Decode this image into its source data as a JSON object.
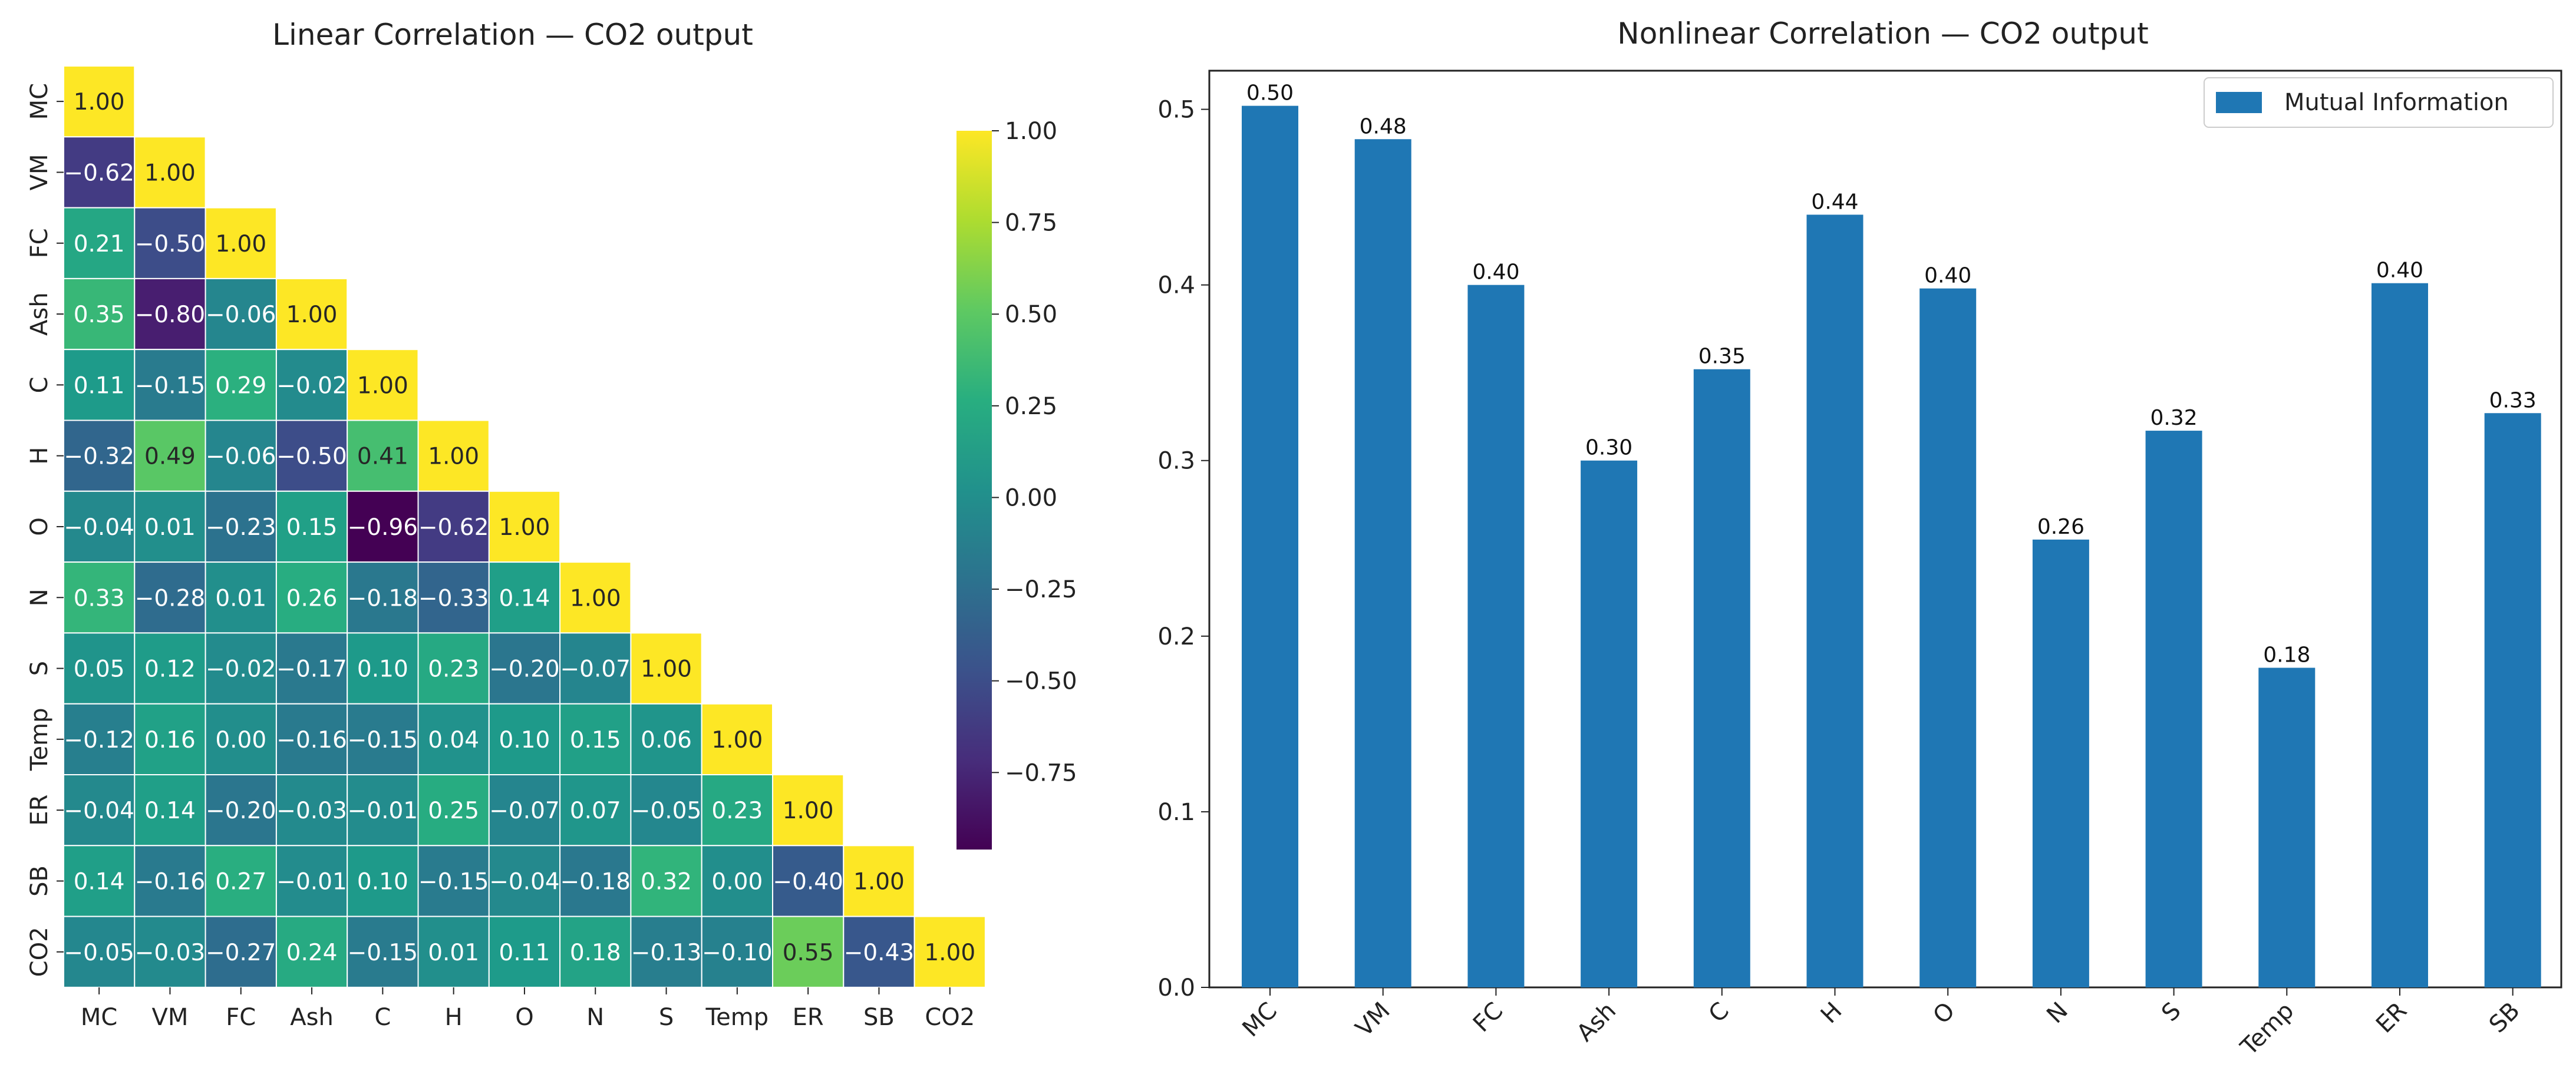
{
  "chart_data": [
    {
      "type": "heatmap",
      "title": "Linear Correlation — CO2 output",
      "labels": [
        "MC",
        "VM",
        "FC",
        "Ash",
        "C",
        "H",
        "O",
        "N",
        "S",
        "Temp",
        "ER",
        "SB",
        "CO2"
      ],
      "matrix": [
        [
          1.0
        ],
        [
          -0.62,
          1.0
        ],
        [
          0.21,
          -0.5,
          1.0
        ],
        [
          0.35,
          -0.8,
          -0.06,
          1.0
        ],
        [
          0.11,
          -0.15,
          0.29,
          -0.02,
          1.0
        ],
        [
          -0.32,
          0.49,
          -0.06,
          -0.5,
          0.41,
          1.0
        ],
        [
          -0.04,
          0.01,
          -0.23,
          0.15,
          -0.96,
          -0.62,
          1.0
        ],
        [
          0.33,
          -0.28,
          0.01,
          0.26,
          -0.18,
          -0.33,
          0.14,
          1.0
        ],
        [
          0.05,
          0.12,
          -0.02,
          -0.17,
          0.1,
          0.23,
          -0.2,
          -0.07,
          1.0
        ],
        [
          -0.12,
          0.16,
          0.0,
          -0.16,
          -0.15,
          0.04,
          0.1,
          0.15,
          0.06,
          1.0
        ],
        [
          -0.04,
          0.14,
          -0.2,
          -0.03,
          -0.01,
          0.25,
          -0.07,
          0.07,
          -0.05,
          0.23,
          1.0
        ],
        [
          0.14,
          -0.16,
          0.27,
          -0.01,
          0.1,
          -0.15,
          -0.04,
          -0.18,
          0.32,
          0.0,
          -0.4,
          1.0
        ],
        [
          -0.05,
          -0.03,
          -0.27,
          0.24,
          -0.15,
          0.01,
          0.11,
          0.18,
          -0.13,
          -0.1,
          0.55,
          -0.43,
          1.0
        ]
      ],
      "colormap": "viridis",
      "vmin": -0.96,
      "vmax": 1.0,
      "colorbar_ticks": [
        "1.00",
        "0.75",
        "0.50",
        "0.25",
        "0.00",
        "−0.25",
        "−0.50",
        "−0.75"
      ],
      "colorbar_tick_values": [
        1.0,
        0.75,
        0.5,
        0.25,
        0.0,
        -0.25,
        -0.5,
        -0.75
      ]
    },
    {
      "type": "bar",
      "title": "Nonlinear Correlation — CO2 output",
      "categories": [
        "MC",
        "VM",
        "FC",
        "Ash",
        "C",
        "H",
        "O",
        "N",
        "S",
        "Temp",
        "ER",
        "SB"
      ],
      "values": [
        0.502,
        0.483,
        0.4,
        0.3,
        0.352,
        0.44,
        0.398,
        0.255,
        0.317,
        0.182,
        0.401,
        0.327
      ],
      "value_labels": [
        "0.50",
        "0.48",
        "0.40",
        "0.30",
        "0.35",
        "0.44",
        "0.40",
        "0.26",
        "0.32",
        "0.18",
        "0.40",
        "0.33"
      ],
      "ylim": [
        0,
        0.5
      ],
      "yticks": [
        "0.0",
        "0.1",
        "0.2",
        "0.3",
        "0.4",
        "0.5"
      ],
      "ytick_values": [
        0,
        0.1,
        0.2,
        0.3,
        0.4,
        0.5
      ],
      "legend": "Mutual Information",
      "legend_position": "top-right",
      "bar_color": "#1f77b4"
    }
  ]
}
